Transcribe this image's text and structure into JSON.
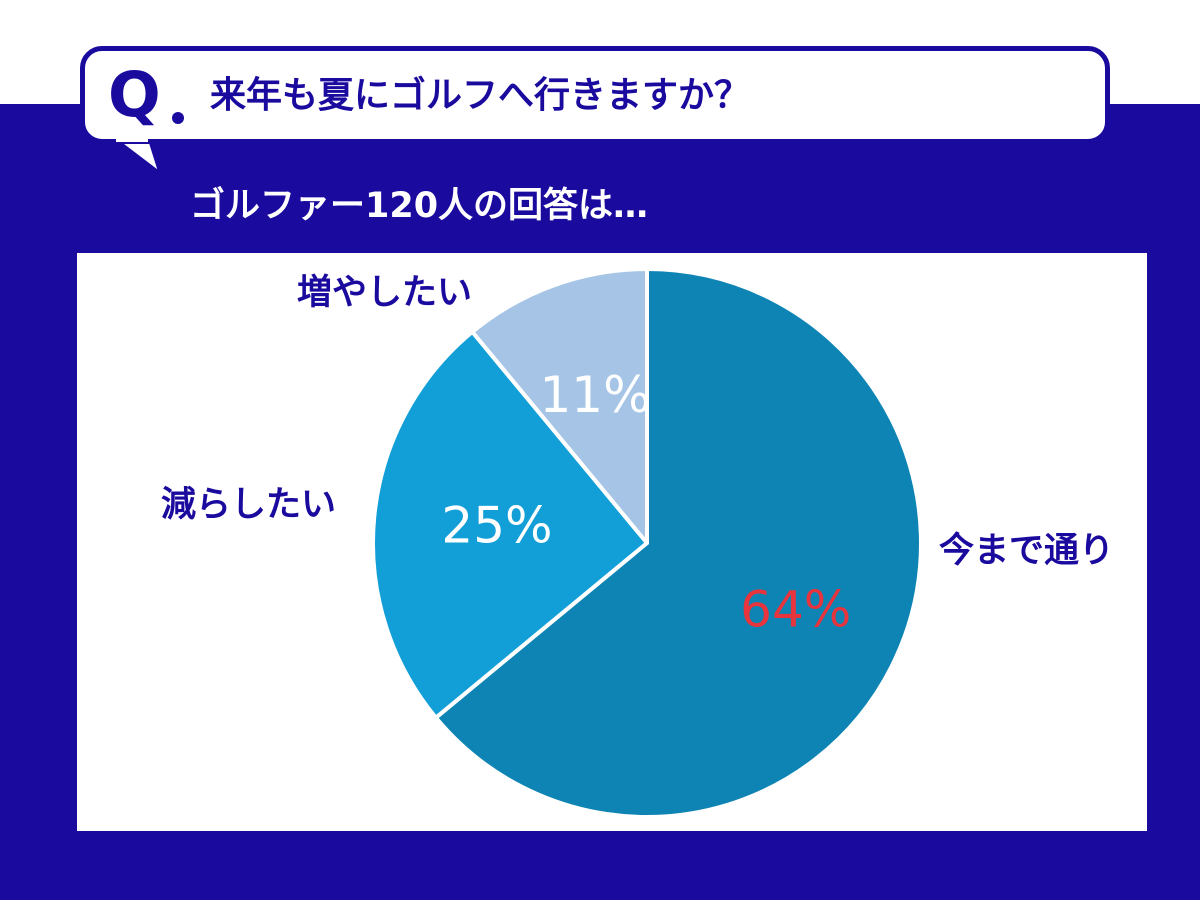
{
  "header": {
    "q_mark": "Q",
    "question": "来年も夏にゴルフへ行きますか？",
    "subtitle": "ゴルファー120人の回答は…"
  },
  "colors": {
    "navy": "#1a0a9e",
    "slice_current": "#0e84b4",
    "slice_decrease": "#129fd8",
    "slice_increase": "#a6c5e6",
    "highlight_label": "#e8343c"
  },
  "chart_data": {
    "type": "pie",
    "title": "",
    "slices": [
      {
        "label": "今まで通り",
        "value": 64,
        "value_label": "64%",
        "color": "#0e84b4",
        "value_color": "#e8343c"
      },
      {
        "label": "減らしたい",
        "value": 25,
        "value_label": "25%",
        "color": "#129fd8",
        "value_color": "#ffffff"
      },
      {
        "label": "増やしたい",
        "value": 11,
        "value_label": "11%",
        "color": "#a6c5e6",
        "value_color": "#ffffff"
      }
    ],
    "start_angle": "12 o'clock",
    "direction": "clockwise"
  }
}
